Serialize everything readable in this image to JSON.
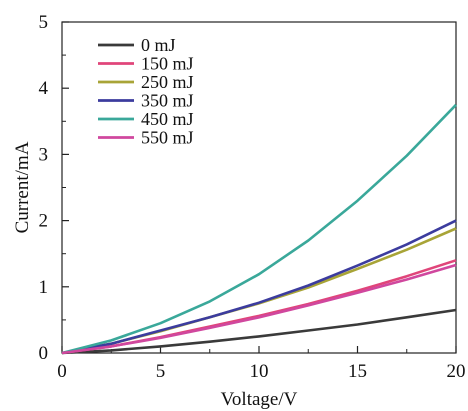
{
  "chart_data": {
    "type": "line",
    "xlabel": "Voltage/V",
    "ylabel": "Current/mA",
    "xlim": [
      0,
      20
    ],
    "ylim": [
      0,
      5
    ],
    "xticks": [
      "0",
      "5",
      "10",
      "15",
      "20"
    ],
    "yticks": [
      "0",
      "1",
      "2",
      "3",
      "4",
      "5"
    ],
    "grid": false,
    "legend_position": "top-left",
    "x": [
      0,
      2.5,
      5,
      7.5,
      10,
      12.5,
      15,
      17.5,
      20
    ],
    "series": [
      {
        "name": "0 mJ",
        "color": "#3a3a3a",
        "values": [
          0,
          0.04,
          0.1,
          0.17,
          0.25,
          0.34,
          0.43,
          0.54,
          0.65
        ]
      },
      {
        "name": "150 mJ",
        "color": "#e0457a",
        "values": [
          0,
          0.1,
          0.24,
          0.4,
          0.56,
          0.74,
          0.94,
          1.16,
          1.4
        ]
      },
      {
        "name": "250 mJ",
        "color": "#a8a437",
        "values": [
          0,
          0.14,
          0.33,
          0.54,
          0.75,
          0.99,
          1.27,
          1.56,
          1.88
        ]
      },
      {
        "name": "350 mJ",
        "color": "#3c3c9e",
        "values": [
          0,
          0.14,
          0.34,
          0.54,
          0.76,
          1.02,
          1.32,
          1.64,
          2.0
        ]
      },
      {
        "name": "450 mJ",
        "color": "#3aa89a",
        "values": [
          0,
          0.19,
          0.45,
          0.78,
          1.19,
          1.7,
          2.3,
          2.98,
          3.75
        ]
      },
      {
        "name": "550 mJ",
        "color": "#d0479e",
        "values": [
          0,
          0.1,
          0.23,
          0.38,
          0.54,
          0.72,
          0.91,
          1.11,
          1.33
        ]
      }
    ]
  }
}
